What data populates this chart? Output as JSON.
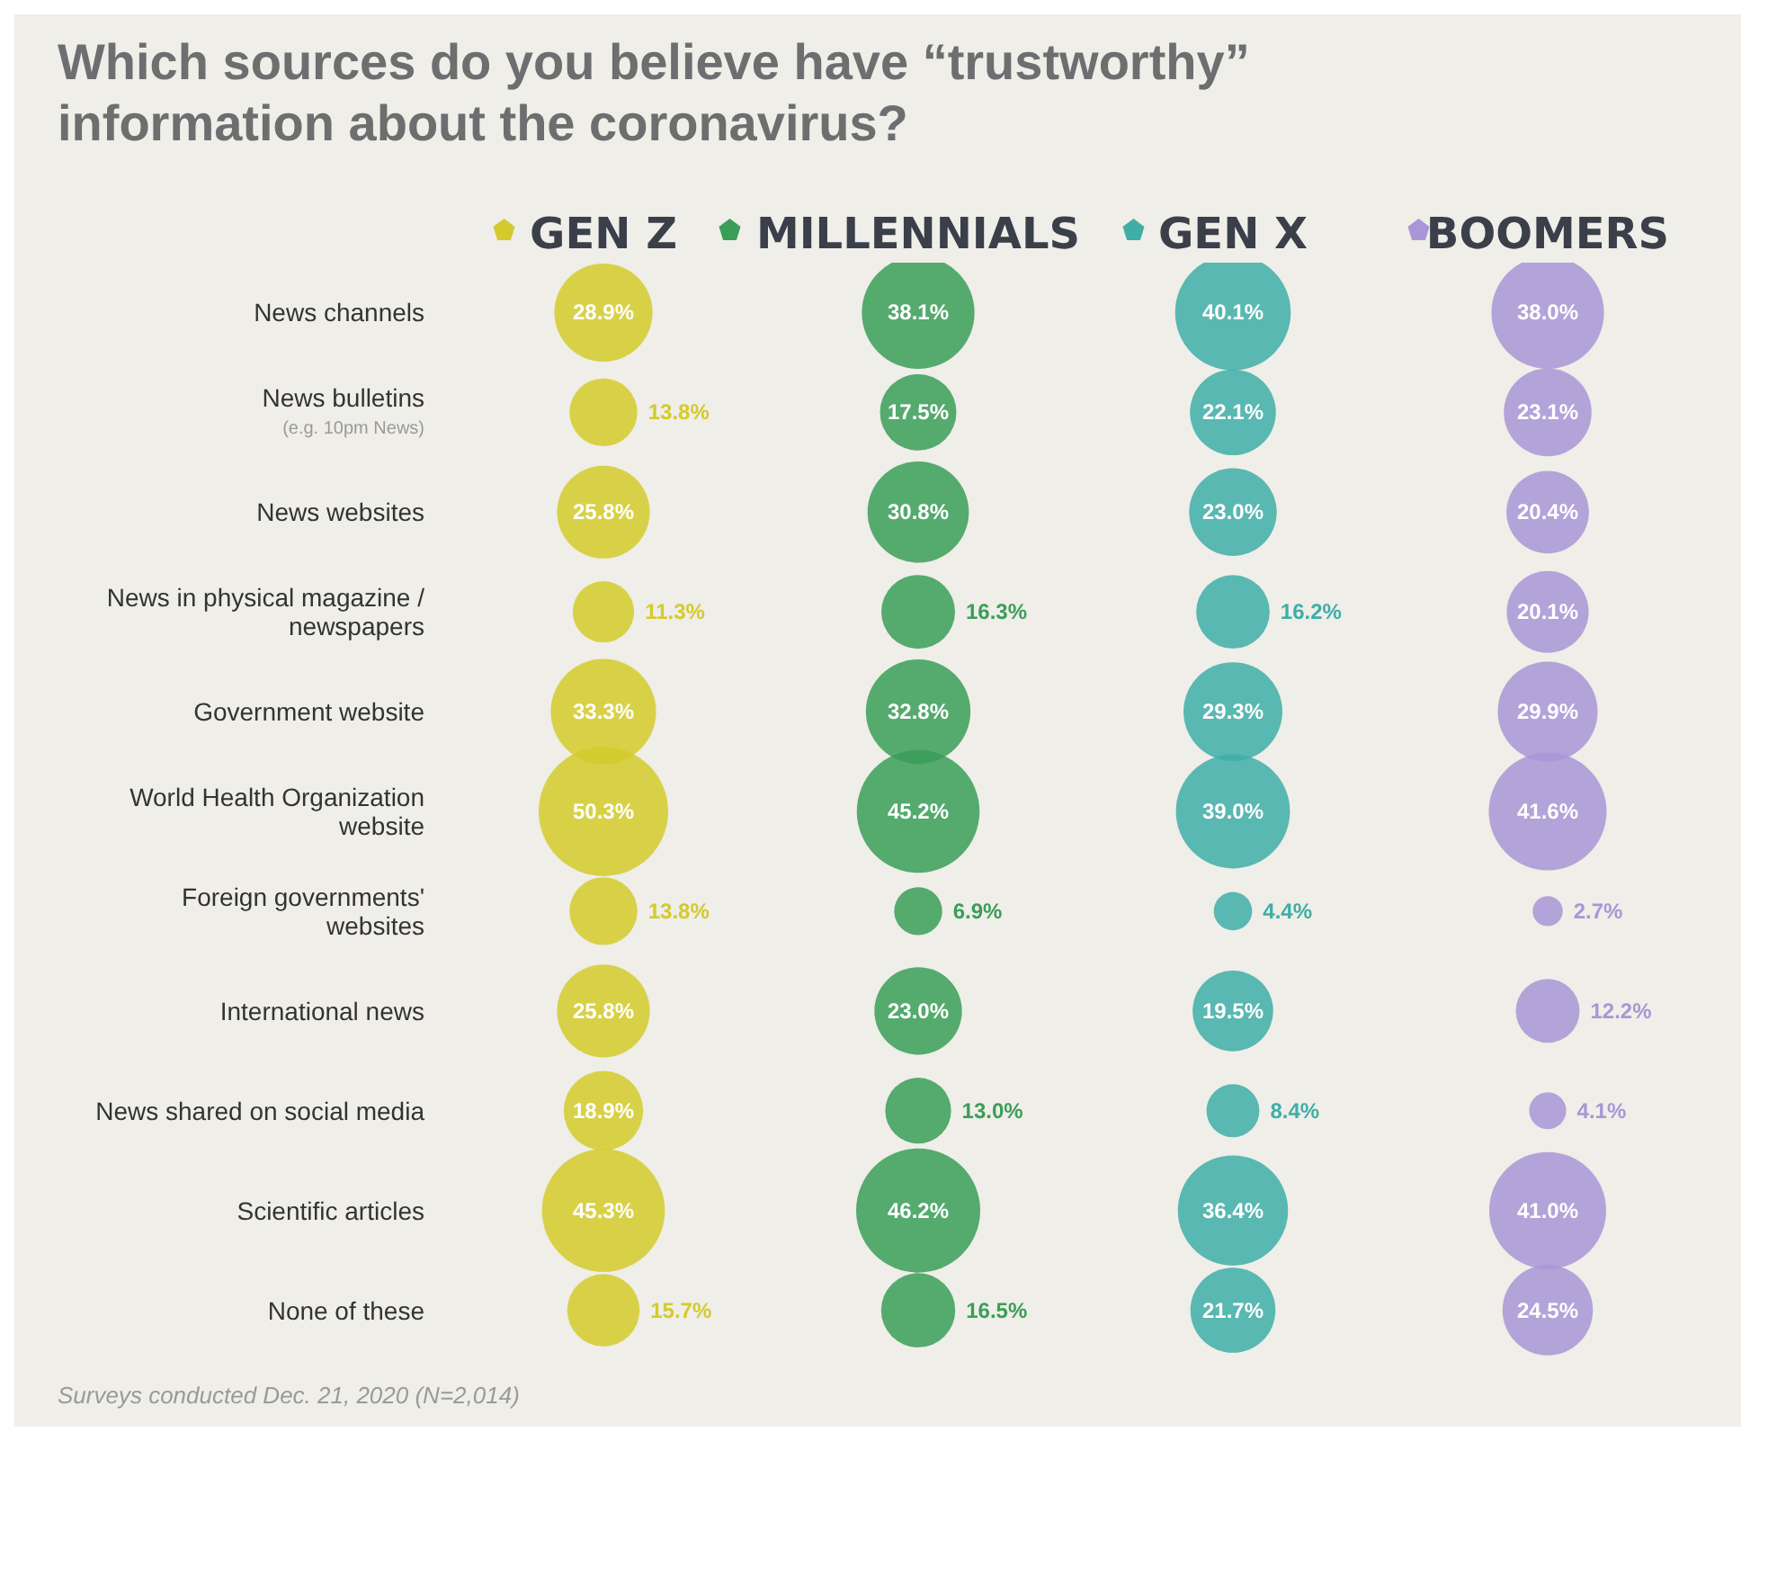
{
  "chart_data": {
    "type": "other",
    "title": "Which sources do you believe have “trustworthy” information about the coronavirus?",
    "categories": [
      "News channels",
      "News bulletins (e.g. 10pm News)",
      "News websites",
      "News in physical magazine / newspapers",
      "Government website",
      "World Health Organization website",
      "Foreign governments' websites",
      "International news",
      "News shared on social media",
      "Scientific articles",
      "None of these"
    ],
    "series": [
      {
        "name": "GEN Z",
        "color": "#d3cb2c",
        "values": [
          28.9,
          13.8,
          25.8,
          11.3,
          33.3,
          50.3,
          13.8,
          25.8,
          18.9,
          45.3,
          15.7
        ],
        "value_labels": [
          "28.9%",
          "13.8%",
          "25.8%",
          "11.3%",
          "33.3%",
          "50.3%",
          "13.8%",
          "25.8%",
          "18.9%",
          "45.3%",
          "15.7%"
        ]
      },
      {
        "name": "MILLENNIALS",
        "color": "#3a9e58",
        "values": [
          38.1,
          17.5,
          30.8,
          16.3,
          32.8,
          45.2,
          6.9,
          23.0,
          13.0,
          46.2,
          16.5
        ],
        "value_labels": [
          "38.1%",
          "17.5%",
          "30.8%",
          "16.3%",
          "32.8%",
          "45.2%",
          "6.9%",
          "23.0%",
          "13.0%",
          "46.2%",
          "16.5%"
        ]
      },
      {
        "name": "GEN X",
        "color": "#3eaea7",
        "values": [
          40.1,
          22.1,
          23.0,
          16.2,
          29.3,
          39.0,
          4.4,
          19.5,
          8.4,
          36.4,
          21.7
        ],
        "value_labels": [
          "40.1%",
          "22.1%",
          "23.0%",
          "16.2%",
          "29.3%",
          "39.0%",
          "4.4%",
          "19.5%",
          "8.4%",
          "36.4%",
          "21.7%"
        ]
      },
      {
        "name": "BOOMERS",
        "color": "#a797d6",
        "values": [
          38.0,
          23.1,
          20.4,
          20.1,
          29.9,
          41.6,
          2.7,
          12.2,
          4.1,
          41.0,
          24.5
        ],
        "value_labels": [
          "38.0%",
          "23.1%",
          "20.4%",
          "20.1%",
          "29.9%",
          "41.6%",
          "2.7%",
          "12.2%",
          "4.1%",
          "41.0%",
          "24.5%"
        ]
      }
    ],
    "legend": "top",
    "annotations": [
      "Surveys conducted Dec. 21, 2020 (N=2,014)"
    ]
  }
}
